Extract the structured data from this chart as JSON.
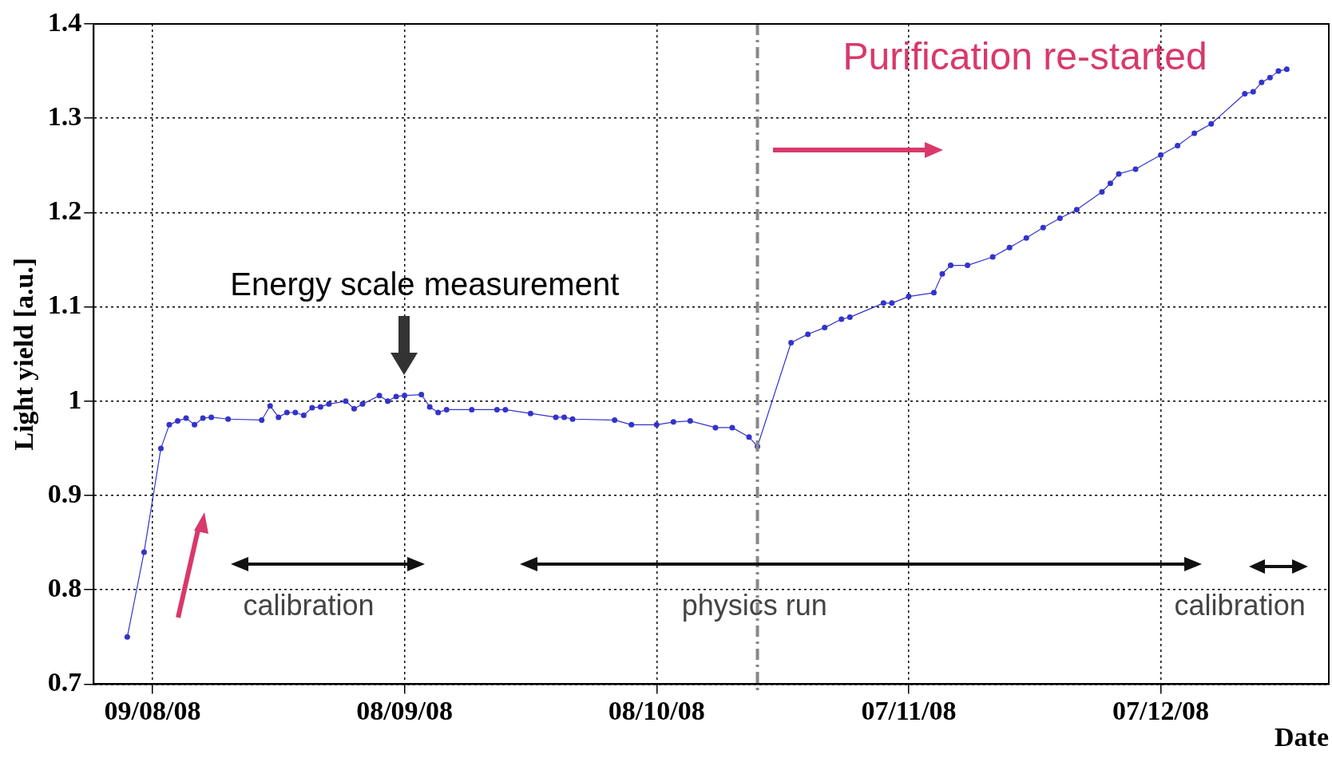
{
  "chart_data": {
    "type": "line",
    "xlabel": "Date",
    "ylabel": "Light yield [a.u.]",
    "x": [
      "2008-08-06",
      "2008-08-08",
      "2008-08-10",
      "2008-08-11",
      "2008-08-12",
      "2008-08-13",
      "2008-08-14",
      "2008-08-15",
      "2008-08-16",
      "2008-08-18",
      "2008-08-22",
      "2008-08-23",
      "2008-08-24",
      "2008-08-25",
      "2008-08-26",
      "2008-08-27",
      "2008-08-28",
      "2008-08-29",
      "2008-08-30",
      "2008-09-01",
      "2008-09-02",
      "2008-09-03",
      "2008-09-05",
      "2008-09-06",
      "2008-09-07",
      "2008-09-08",
      "2008-09-10",
      "2008-09-11",
      "2008-09-12",
      "2008-09-13",
      "2008-09-16",
      "2008-09-19",
      "2008-09-20",
      "2008-09-23",
      "2008-09-26",
      "2008-09-27",
      "2008-09-28",
      "2008-10-03",
      "2008-10-05",
      "2008-10-08",
      "2008-10-10",
      "2008-10-12",
      "2008-10-15",
      "2008-10-17",
      "2008-10-19",
      "2008-10-20",
      "2008-10-24",
      "2008-10-26",
      "2008-10-28",
      "2008-10-30",
      "2008-10-31",
      "2008-11-04",
      "2008-11-05",
      "2008-11-07",
      "2008-11-10",
      "2008-11-11",
      "2008-11-12",
      "2008-11-14",
      "2008-11-17",
      "2008-11-19",
      "2008-11-21",
      "2008-11-23",
      "2008-11-25",
      "2008-11-27",
      "2008-11-30",
      "2008-12-01",
      "2008-12-02",
      "2008-12-04",
      "2008-12-07",
      "2008-12-09",
      "2008-12-11",
      "2008-12-13",
      "2008-12-17",
      "2008-12-18",
      "2008-12-19",
      "2008-12-20",
      "2008-12-21",
      "2008-12-22"
    ],
    "series": [
      {
        "color": "#3333cc",
        "values": [
          0.75,
          0.84,
          0.95,
          0.975,
          0.979,
          0.982,
          0.975,
          0.982,
          0.983,
          0.981,
          0.98,
          0.995,
          0.983,
          0.988,
          0.988,
          0.985,
          0.993,
          0.994,
          0.997,
          1.0,
          0.992,
          0.997,
          1.006,
          1.0,
          1.005,
          1.006,
          1.007,
          0.994,
          0.988,
          0.991,
          0.991,
          0.991,
          0.991,
          0.987,
          0.983,
          0.983,
          0.981,
          0.98,
          0.975,
          0.975,
          0.978,
          0.979,
          0.972,
          0.972,
          0.962,
          0.952,
          1.062,
          1.071,
          1.078,
          1.087,
          1.089,
          1.104,
          1.104,
          1.111,
          1.115,
          1.135,
          1.144,
          1.144,
          1.153,
          1.163,
          1.173,
          1.184,
          1.194,
          1.203,
          1.222,
          1.231,
          1.241,
          1.246,
          1.261,
          1.271,
          1.284,
          1.294,
          1.326,
          1.328,
          1.338,
          1.343,
          1.35,
          1.352
        ]
      }
    ],
    "xlim": [
      "2008-08-02",
      "2008-12-27"
    ],
    "xticks": [
      {
        "value": "2008-08-09",
        "label": "09/08/08"
      },
      {
        "value": "2008-09-08",
        "label": "08/09/08"
      },
      {
        "value": "2008-10-08",
        "label": "08/10/08"
      },
      {
        "value": "2008-11-07",
        "label": "07/11/08"
      },
      {
        "value": "2008-12-07",
        "label": "07/12/08"
      }
    ],
    "ylim": [
      0.7,
      1.4
    ],
    "yticks": [
      {
        "value": 0.7,
        "label": "0.7"
      },
      {
        "value": 0.8,
        "label": "0.8"
      },
      {
        "value": 0.9,
        "label": "0.9"
      },
      {
        "value": 1,
        "label": "1"
      },
      {
        "value": 1.1,
        "label": "1.1"
      },
      {
        "value": 1.2,
        "label": "1.2"
      },
      {
        "value": 1.3,
        "label": "1.3"
      },
      {
        "value": 1.4,
        "label": "1.4"
      }
    ],
    "grid": true,
    "marker": "circle",
    "line_style": "solid",
    "ref_lines": [
      {
        "axis": "x",
        "value": "2008-10-20",
        "color": "#888888",
        "line_style": "dashed"
      }
    ],
    "annotations": [
      "Energy scale measurement",
      "Purification re-started",
      "calibration",
      "physics run",
      "calibration"
    ]
  }
}
